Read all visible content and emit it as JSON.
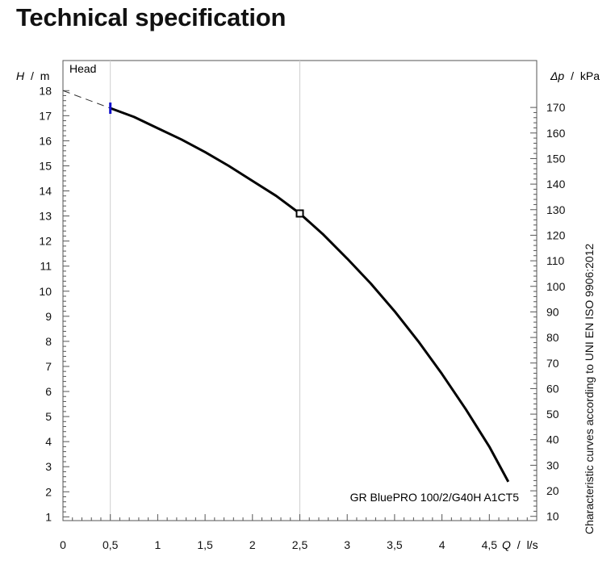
{
  "page": {
    "title": "Technical specification"
  },
  "chart_data": {
    "type": "line",
    "curve_label": "Head",
    "pump_model": "GR BluePRO 100/2/G40H A1CT5",
    "side_caption": "Characteristic curves according to UNI EN ISO 9906:2012",
    "x_axis": {
      "symbol": "Q",
      "unit": "l/s",
      "range": [
        0,
        5
      ],
      "ticks": [
        0,
        0.5,
        1,
        1.5,
        2,
        2.5,
        3,
        3.5,
        4,
        4.5
      ],
      "tick_labels": [
        "0",
        "0,5",
        "1",
        "1,5",
        "2",
        "2,5",
        "3",
        "3,5",
        "4",
        "4,5"
      ]
    },
    "y_axis_left": {
      "symbol": "H",
      "unit": "m",
      "range": [
        0.85,
        19.2
      ],
      "ticks": [
        1,
        2,
        3,
        4,
        5,
        6,
        7,
        8,
        9,
        10,
        11,
        12,
        13,
        14,
        15,
        16,
        17,
        18
      ],
      "tick_labels": [
        "1",
        "2",
        "3",
        "4",
        "5",
        "6",
        "7",
        "8",
        "9",
        "10",
        "11",
        "12",
        "13",
        "14",
        "15",
        "16",
        "17",
        "18"
      ]
    },
    "y_axis_right": {
      "symbol": "Δp",
      "unit": "kPa",
      "ticks": [
        10,
        20,
        30,
        40,
        50,
        60,
        70,
        80,
        90,
        100,
        110,
        120,
        130,
        140,
        150,
        160,
        170
      ],
      "tick_labels": [
        "10",
        "20",
        "30",
        "40",
        "50",
        "60",
        "70",
        "80",
        "90",
        "100",
        "110",
        "120",
        "130",
        "140",
        "150",
        "160",
        "170"
      ],
      "kpa_per_m": 9.81
    },
    "grid_x": [
      0.5,
      2.5
    ],
    "series": [
      {
        "name": "Head",
        "x": [
          0.5,
          0.75,
          1.0,
          1.25,
          1.5,
          1.75,
          2.0,
          2.25,
          2.5,
          2.75,
          3.0,
          3.25,
          3.5,
          3.75,
          4.0,
          4.25,
          4.5,
          4.7
        ],
        "y": [
          17.3,
          16.95,
          16.5,
          16.05,
          15.55,
          15.0,
          14.4,
          13.8,
          13.1,
          12.25,
          11.3,
          10.3,
          9.2,
          8.0,
          6.7,
          5.3,
          3.8,
          2.4
        ]
      }
    ],
    "extrapolation": {
      "x": [
        0,
        0.5
      ],
      "y": [
        18.0,
        17.3
      ]
    },
    "duty_point": {
      "x": 2.5,
      "y": 13.1
    },
    "min_flow_marker": {
      "x": 0.5,
      "y": 17.3
    },
    "colors": {
      "curve": "#000000",
      "axis": "#555555",
      "grid": "#cfcfcf",
      "min_flow_marker": "#1010cc"
    }
  }
}
